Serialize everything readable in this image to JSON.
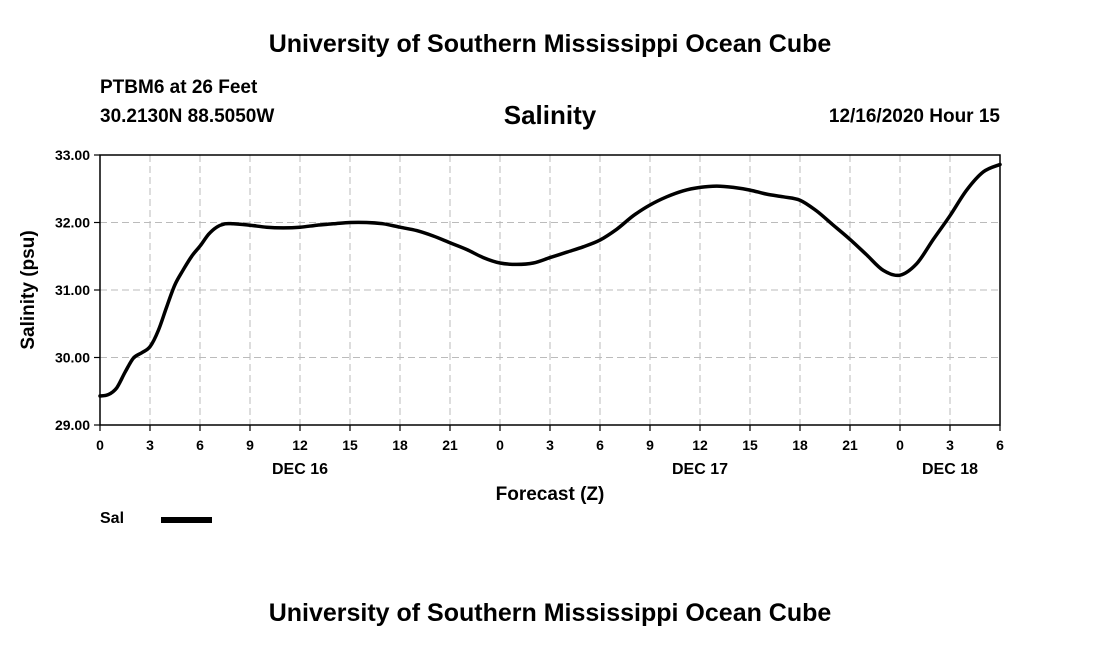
{
  "header": {
    "top_title": "University of Southern Mississippi Ocean Cube",
    "station": "PTBM6 at 26 Feet",
    "coords": "30.2130N 88.5050W",
    "run_time": "12/16/2020 Hour 15"
  },
  "footer": {
    "bottom_title": "University of Southern Mississippi Ocean Cube"
  },
  "legend": {
    "label": "Sal",
    "color": "#000000"
  },
  "chart_data": {
    "type": "line",
    "title": "Salinity",
    "xlabel": "Forecast (Z)",
    "ylabel": "Salinity (psu)",
    "xlim": [
      0,
      54
    ],
    "ylim": [
      29.0,
      33.0
    ],
    "ytick_values": [
      29.0,
      30.0,
      31.0,
      32.0,
      33.0
    ],
    "ytick_labels": [
      "29.00",
      "30.00",
      "31.00",
      "32.00",
      "33.00"
    ],
    "xtick_hours": [
      0,
      3,
      6,
      9,
      12,
      15,
      18,
      21,
      24,
      27,
      30,
      33,
      36,
      39,
      42,
      45,
      48,
      51,
      54
    ],
    "xtick_labels": [
      "0",
      "3",
      "6",
      "9",
      "12",
      "15",
      "18",
      "21",
      "0",
      "3",
      "6",
      "9",
      "12",
      "15",
      "18",
      "21",
      "0",
      "3",
      "6"
    ],
    "day_labels": [
      {
        "hour": 12,
        "label": "DEC 16"
      },
      {
        "hour": 36,
        "label": "DEC 17"
      },
      {
        "hour": 51,
        "label": "DEC 18"
      }
    ],
    "grid": true,
    "legend_position": "bottom-left",
    "series": [
      {
        "name": "Sal",
        "color": "#000000",
        "x": [
          0,
          0.5,
          1,
          1.5,
          2,
          2.5,
          3,
          3.5,
          4,
          4.5,
          5,
          5.5,
          6,
          6.5,
          7,
          7.5,
          8,
          9,
          10,
          11,
          12,
          13,
          14,
          15,
          16,
          17,
          18,
          19,
          20,
          21,
          22,
          23,
          24,
          25,
          26,
          27,
          28,
          29,
          30,
          31,
          32,
          33,
          34,
          35,
          36,
          37,
          38,
          39,
          40,
          41,
          42,
          43,
          44,
          45,
          46,
          47,
          48,
          49,
          50,
          51,
          52,
          53,
          54
        ],
        "y": [
          29.43,
          29.45,
          29.55,
          29.78,
          29.99,
          30.07,
          30.16,
          30.4,
          30.75,
          31.08,
          31.3,
          31.5,
          31.65,
          31.82,
          31.93,
          31.98,
          31.98,
          31.96,
          31.93,
          31.92,
          31.93,
          31.96,
          31.98,
          32.0,
          32.0,
          31.98,
          31.93,
          31.88,
          31.8,
          31.7,
          31.6,
          31.48,
          31.4,
          31.38,
          31.4,
          31.48,
          31.56,
          31.64,
          31.74,
          31.9,
          32.1,
          32.26,
          32.38,
          32.47,
          32.52,
          32.54,
          32.52,
          32.48,
          32.42,
          32.38,
          32.33,
          32.17,
          31.96,
          31.75,
          31.52,
          31.29,
          31.22,
          31.39,
          31.75,
          32.1,
          32.48,
          32.75,
          32.86
        ]
      }
    ]
  }
}
